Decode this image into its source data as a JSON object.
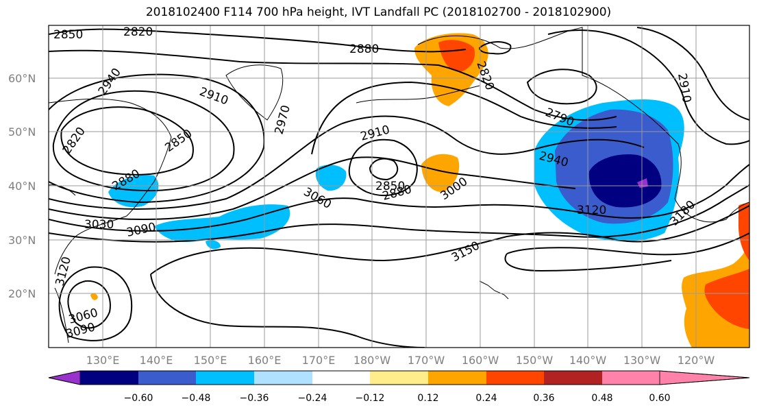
{
  "title": "2018102400 F114 700 hPa height, IVT Landfall PC (2018102700 - 2018102900)",
  "map": {
    "lat_labels": [
      "60°N",
      "50°N",
      "40°N",
      "30°N",
      "20°N"
    ],
    "lon_labels": [
      "130°E",
      "140°E",
      "150°E",
      "160°E",
      "170°E",
      "180°W",
      "170°W",
      "160°W",
      "150°W",
      "140°W",
      "130°W",
      "120°W"
    ],
    "contour_labels": [
      "2850",
      "2820",
      "2880",
      "2940",
      "2910",
      "2970",
      "2820",
      "2850",
      "2880",
      "2910",
      "2790",
      "2940",
      "2850",
      "2880",
      "3060",
      "3000",
      "3090",
      "3030",
      "3120",
      "3150",
      "3180",
      "3120",
      "3060",
      "3090",
      "2910",
      "2820"
    ],
    "fill_colors": {
      "negative_weak": "#00bfff",
      "negative_medium": "#3a5ccc",
      "negative_strong": "#000080",
      "negative_extreme": "#9932cc",
      "positive_weak": "#ffa500",
      "positive_medium": "#ff4500",
      "positive_strong": "#b22222"
    }
  },
  "colorbar": {
    "colors": [
      "#9932cc",
      "#000080",
      "#3a5ccc",
      "#00bfff",
      "#b0e2ff",
      "#ffffff",
      "#ffec8b",
      "#ffa500",
      "#ff4500",
      "#b22222",
      "#ff82ab"
    ],
    "tick_labels": [
      "−0.60",
      "−0.48",
      "−0.36",
      "−0.24",
      "−0.12",
      "0.12",
      "0.24",
      "0.36",
      "0.48",
      "0.60"
    ],
    "values": [
      -0.6,
      -0.48,
      -0.36,
      -0.24,
      -0.12,
      0.12,
      0.24,
      0.36,
      0.48,
      0.6
    ]
  }
}
